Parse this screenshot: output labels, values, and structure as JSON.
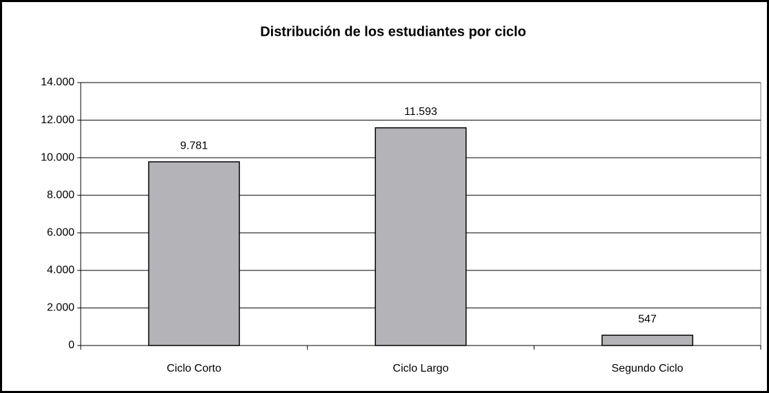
{
  "chart_data": {
    "type": "bar",
    "title": "Distribución de los estudiantes por ciclo",
    "categories": [
      "Ciclo Corto",
      "Ciclo Largo",
      "Segundo Ciclo"
    ],
    "values": [
      9781,
      11593,
      547
    ],
    "value_labels": [
      "9.781",
      "11.593",
      "547"
    ],
    "color": "#b3b3b8",
    "ylim": [
      0,
      14000
    ],
    "yticks": [
      0,
      {
        "value": 2000,
        "label": "2.000"
      },
      {
        "value": 4000,
        "label": "4.000"
      },
      {
        "value": 6000,
        "label": "6.000"
      },
      {
        "value": 8000,
        "label": "8.000"
      },
      {
        "value": 10000,
        "label": "10.000"
      },
      {
        "value": 12000,
        "label": "12.000"
      },
      {
        "value": 14000,
        "label": "14.000"
      }
    ],
    "grid": true
  }
}
